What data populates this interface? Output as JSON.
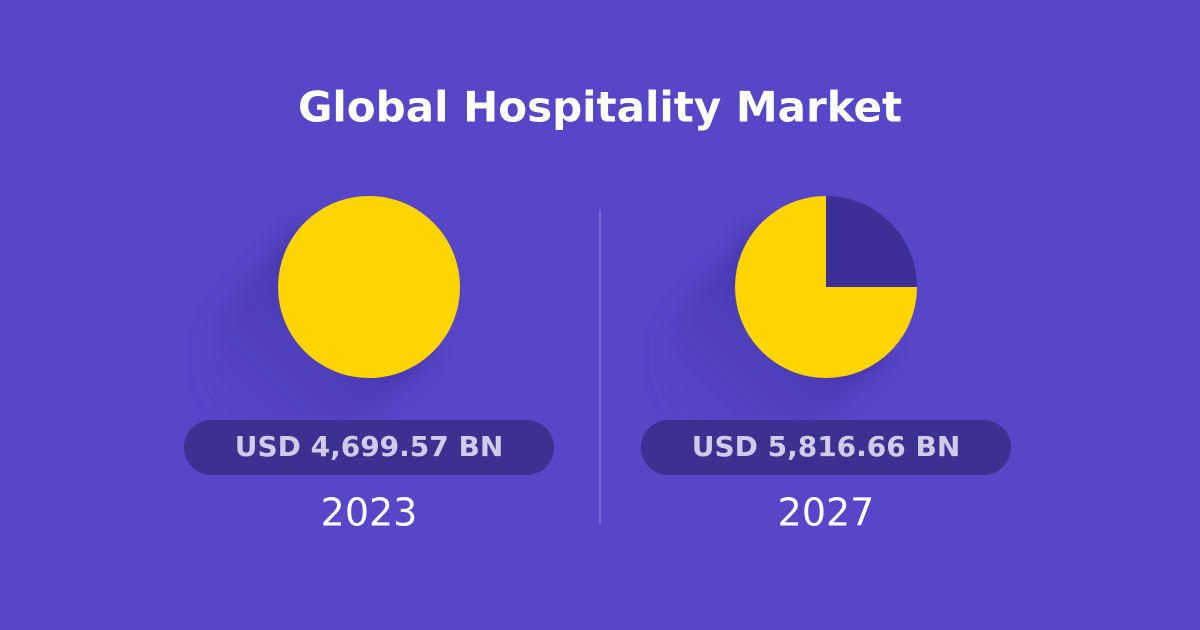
{
  "title": "Global Hospitality Market",
  "chart_data": [
    {
      "type": "pie",
      "label": "USD 4,699.57 BN",
      "year": "2023",
      "values": [
        100
      ],
      "colors": [
        "#ffd500"
      ]
    },
    {
      "type": "pie",
      "label": "USD 5,816.66 BN",
      "year": "2027",
      "values": [
        25,
        75
      ],
      "colors": [
        "#3d2f96",
        "#ffd500"
      ]
    }
  ]
}
